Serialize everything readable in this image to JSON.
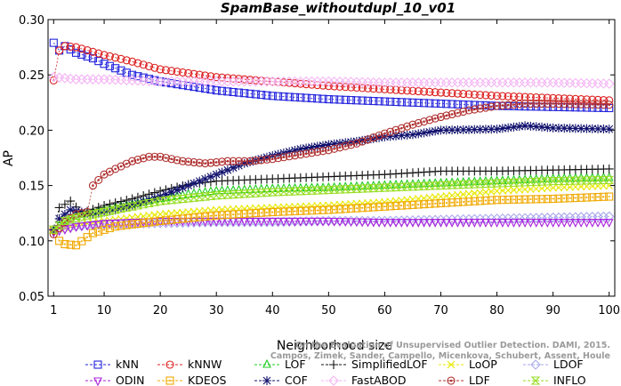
{
  "chart_data": {
    "type": "line",
    "title": "SpamBase_withoutdupl_10_v01",
    "xlabel": "Neighborhood size",
    "ylabel": "AP",
    "xlim": [
      0,
      101
    ],
    "ylim": [
      0.05,
      0.3
    ],
    "xticks": [
      1,
      10,
      20,
      30,
      40,
      50,
      60,
      70,
      80,
      90,
      100
    ],
    "yticks": [
      0.05,
      0.1,
      0.15,
      0.2,
      0.25,
      0.3
    ],
    "ytick_labels": [
      "0.05",
      "0.10",
      "0.15",
      "0.20",
      "0.25",
      "0.30"
    ],
    "grid": false,
    "legend_position": "bottom",
    "credit_lines": [
      "Campos, Zimek, Sander, Campello, Micenkova, Schubert, Assent, Houle",
      "On the Evaluation of Unsupervised Outlier Detection. DAMI, 2015."
    ],
    "series": [
      {
        "name": "kNN",
        "color": "#2222dd",
        "marker": "square",
        "points": [
          [
            1,
            0.279
          ],
          [
            2,
            0.272
          ],
          [
            3,
            0.276
          ],
          [
            5,
            0.27
          ],
          [
            8,
            0.265
          ],
          [
            10,
            0.26
          ],
          [
            12,
            0.256
          ],
          [
            15,
            0.25
          ],
          [
            20,
            0.244
          ],
          [
            30,
            0.236
          ],
          [
            40,
            0.231
          ],
          [
            50,
            0.228
          ],
          [
            60,
            0.226
          ],
          [
            70,
            0.224
          ],
          [
            80,
            0.222
          ],
          [
            90,
            0.221
          ],
          [
            100,
            0.22
          ]
        ]
      },
      {
        "name": "kNNW",
        "color": "#dd2222",
        "marker": "circle",
        "points": [
          [
            1,
            0.245
          ],
          [
            2,
            0.272
          ],
          [
            3,
            0.276
          ],
          [
            5,
            0.275
          ],
          [
            10,
            0.268
          ],
          [
            15,
            0.262
          ],
          [
            20,
            0.255
          ],
          [
            30,
            0.248
          ],
          [
            40,
            0.244
          ],
          [
            50,
            0.24
          ],
          [
            60,
            0.237
          ],
          [
            70,
            0.234
          ],
          [
            80,
            0.231
          ],
          [
            90,
            0.229
          ],
          [
            100,
            0.227
          ]
        ]
      },
      {
        "name": "LOF",
        "color": "#22cc22",
        "marker": "triangle-up",
        "points": [
          [
            1,
            0.11
          ],
          [
            3,
            0.118
          ],
          [
            6,
            0.124
          ],
          [
            10,
            0.128
          ],
          [
            15,
            0.133
          ],
          [
            20,
            0.138
          ],
          [
            25,
            0.142
          ],
          [
            30,
            0.145
          ],
          [
            40,
            0.147
          ],
          [
            50,
            0.148
          ],
          [
            60,
            0.15
          ],
          [
            70,
            0.152
          ],
          [
            80,
            0.154
          ],
          [
            90,
            0.156
          ],
          [
            100,
            0.157
          ]
        ]
      },
      {
        "name": "SimplifiedLOF",
        "color": "#111111",
        "marker": "plus",
        "points": [
          [
            1,
            0.11
          ],
          [
            2,
            0.13
          ],
          [
            4,
            0.136
          ],
          [
            6,
            0.125
          ],
          [
            10,
            0.132
          ],
          [
            15,
            0.138
          ],
          [
            20,
            0.145
          ],
          [
            25,
            0.151
          ],
          [
            30,
            0.154
          ],
          [
            40,
            0.156
          ],
          [
            50,
            0.158
          ],
          [
            60,
            0.16
          ],
          [
            70,
            0.163
          ],
          [
            80,
            0.163
          ],
          [
            90,
            0.164
          ],
          [
            100,
            0.165
          ]
        ]
      },
      {
        "name": "LoOP",
        "color": "#e8e800",
        "marker": "x",
        "points": [
          [
            1,
            0.11
          ],
          [
            3,
            0.112
          ],
          [
            6,
            0.115
          ],
          [
            10,
            0.118
          ],
          [
            15,
            0.121
          ],
          [
            20,
            0.124
          ],
          [
            30,
            0.128
          ],
          [
            40,
            0.13
          ],
          [
            50,
            0.132
          ],
          [
            60,
            0.135
          ],
          [
            70,
            0.14
          ],
          [
            80,
            0.145
          ],
          [
            90,
            0.148
          ],
          [
            100,
            0.15
          ]
        ]
      },
      {
        "name": "LDOF",
        "color": "#aaaaee",
        "marker": "diamond",
        "points": [
          [
            1,
            0.11
          ],
          [
            5,
            0.113
          ],
          [
            10,
            0.115
          ],
          [
            20,
            0.116
          ],
          [
            30,
            0.117
          ],
          [
            40,
            0.117
          ],
          [
            50,
            0.118
          ],
          [
            60,
            0.118
          ],
          [
            70,
            0.119
          ],
          [
            80,
            0.12
          ],
          [
            90,
            0.121
          ],
          [
            100,
            0.122
          ]
        ]
      },
      {
        "name": "ODIN",
        "color": "#aa22dd",
        "marker": "triangle-down",
        "points": [
          [
            1,
            0.108
          ],
          [
            5,
            0.113
          ],
          [
            10,
            0.116
          ],
          [
            20,
            0.118
          ],
          [
            30,
            0.118
          ],
          [
            40,
            0.118
          ],
          [
            50,
            0.118
          ],
          [
            60,
            0.117
          ],
          [
            70,
            0.117
          ],
          [
            80,
            0.117
          ],
          [
            90,
            0.117
          ],
          [
            100,
            0.117
          ]
        ]
      },
      {
        "name": "KDEOS",
        "color": "#f0a800",
        "marker": "square-dot",
        "points": [
          [
            1,
            0.11
          ],
          [
            2,
            0.1
          ],
          [
            3,
            0.097
          ],
          [
            5,
            0.096
          ],
          [
            8,
            0.107
          ],
          [
            12,
            0.113
          ],
          [
            20,
            0.118
          ],
          [
            30,
            0.123
          ],
          [
            40,
            0.126
          ],
          [
            50,
            0.128
          ],
          [
            60,
            0.131
          ],
          [
            70,
            0.134
          ],
          [
            80,
            0.137
          ],
          [
            90,
            0.138
          ],
          [
            100,
            0.14
          ]
        ]
      },
      {
        "name": "COF",
        "color": "#11116e",
        "marker": "star",
        "points": [
          [
            1,
            0.11
          ],
          [
            2,
            0.12
          ],
          [
            4,
            0.128
          ],
          [
            8,
            0.124
          ],
          [
            12,
            0.128
          ],
          [
            20,
            0.14
          ],
          [
            25,
            0.15
          ],
          [
            30,
            0.16
          ],
          [
            35,
            0.17
          ],
          [
            40,
            0.177
          ],
          [
            45,
            0.183
          ],
          [
            50,
            0.187
          ],
          [
            55,
            0.19
          ],
          [
            60,
            0.194
          ],
          [
            65,
            0.196
          ],
          [
            70,
            0.2
          ],
          [
            80,
            0.201
          ],
          [
            85,
            0.204
          ],
          [
            90,
            0.202
          ],
          [
            100,
            0.201
          ]
        ]
      },
      {
        "name": "FastABOD",
        "color": "#f4b6f4",
        "marker": "diamond",
        "points": [
          [
            1,
            0.248
          ],
          [
            5,
            0.246
          ],
          [
            10,
            0.246
          ],
          [
            20,
            0.244
          ],
          [
            30,
            0.244
          ],
          [
            40,
            0.244
          ],
          [
            50,
            0.244
          ],
          [
            60,
            0.243
          ],
          [
            70,
            0.243
          ],
          [
            80,
            0.243
          ],
          [
            90,
            0.243
          ],
          [
            100,
            0.242
          ]
        ]
      },
      {
        "name": "LDF",
        "color": "#b03030",
        "marker": "circle-dot",
        "points": [
          [
            1,
            0.106
          ],
          [
            3,
            0.117
          ],
          [
            5,
            0.124
          ],
          [
            7,
            0.126
          ],
          [
            8,
            0.15
          ],
          [
            10,
            0.16
          ],
          [
            12,
            0.165
          ],
          [
            15,
            0.172
          ],
          [
            18,
            0.176
          ],
          [
            20,
            0.176
          ],
          [
            24,
            0.172
          ],
          [
            28,
            0.17
          ],
          [
            32,
            0.172
          ],
          [
            36,
            0.172
          ],
          [
            40,
            0.174
          ],
          [
            45,
            0.178
          ],
          [
            50,
            0.182
          ],
          [
            55,
            0.188
          ],
          [
            60,
            0.197
          ],
          [
            65,
            0.205
          ],
          [
            70,
            0.212
          ],
          [
            75,
            0.218
          ],
          [
            80,
            0.222
          ],
          [
            85,
            0.224
          ],
          [
            90,
            0.224
          ],
          [
            100,
            0.223
          ]
        ]
      },
      {
        "name": "INFLO",
        "color": "#99dd22",
        "marker": "hourglass",
        "points": [
          [
            1,
            0.11
          ],
          [
            3,
            0.118
          ],
          [
            6,
            0.122
          ],
          [
            10,
            0.126
          ],
          [
            15,
            0.131
          ],
          [
            20,
            0.136
          ],
          [
            30,
            0.141
          ],
          [
            40,
            0.144
          ],
          [
            50,
            0.146
          ],
          [
            60,
            0.148
          ],
          [
            70,
            0.15
          ],
          [
            80,
            0.152
          ],
          [
            90,
            0.154
          ],
          [
            100,
            0.155
          ]
        ]
      }
    ],
    "legend_order": [
      "kNN",
      "kNNW",
      "LOF",
      "SimplifiedLOF",
      "LoOP",
      "LDOF",
      "ODIN",
      "KDEOS",
      "COF",
      "FastABOD",
      "LDF",
      "INFLO"
    ]
  }
}
